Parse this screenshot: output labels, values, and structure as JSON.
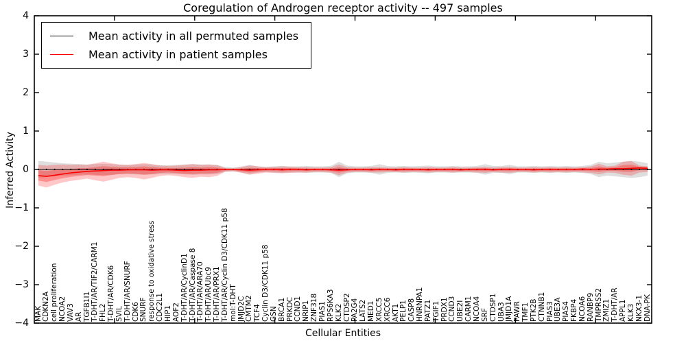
{
  "title": "Coregulation of Androgen receptor activity -- 497 samples",
  "legend": {
    "items": [
      {
        "label": "Mean activity in all permuted samples",
        "color": "#000000"
      },
      {
        "label": "Mean activity in patient samples",
        "color": "#ff0000"
      }
    ],
    "position": "upper left",
    "border_color": "#000000"
  },
  "chart_data": {
    "type": "line",
    "title": "Coregulation of Androgen receptor activity -- 497 samples",
    "xlabel": "Cellular Entities",
    "ylabel": "Inferred Activity",
    "ylim": [
      -4,
      4
    ],
    "yticks": [
      4,
      3,
      2,
      1,
      0,
      -1,
      -2,
      -3,
      -4
    ],
    "ytick_labels": [
      "4",
      "3",
      "2",
      "1",
      "0",
      "−1",
      "−2",
      "−3",
      "−4"
    ],
    "xticks_top": [
      10,
      20,
      30,
      40,
      50,
      60,
      70
    ],
    "grid": false,
    "legend_position": "upper left",
    "categories": [
      "MAK",
      "CDKN2A",
      "cell proliferation",
      "NCOA2",
      "VAV3",
      "AR",
      "TGFB1I1",
      "T-DHT/AR/TIF2/CARM1",
      "FHL2",
      "T-DHT/AR/CDK6",
      "SVIL",
      "T-DHT/AR/SNURF",
      "CDK6",
      "SNURF",
      "response to oxidative stress",
      "CDC2L1",
      "HIP1",
      "AOF2",
      "T-DHT/AR/CyclinD1",
      "T-DHT/AR/Caspase 8",
      "T-DHT/AR/ARA70",
      "T-DHT/AR/Ubc9",
      "T-DHT/AR/PRX1",
      "T-DHT/AR/Cyclin D3/CDK11 p58",
      "mol:T-DHT",
      "JMJD2C",
      "CMTM2",
      "TCF4",
      "Cyclin D3/CDK11 p58",
      "GSN",
      "BRCA1",
      "PRKDC",
      "CCND1",
      "NRIP1",
      "ZNF318",
      "PIAS1",
      "RPS6KA3",
      "KLK2",
      "CTDSP2",
      "PA2G4",
      "LATS2",
      "MED1",
      "XRCC5",
      "XRCC6",
      "AKT1",
      "PELP1",
      "CASP8",
      "HNRNPA1",
      "PATZ1",
      "TGIF1",
      "PRDX1",
      "CCND3",
      "UBE2I",
      "CARM1",
      "NCOA4",
      "SRF",
      "CTDSP1",
      "UBA3",
      "JMJD1A",
      "PAWR",
      "TMF1",
      "PTK2B",
      "CTNNB1",
      "PIAS3",
      "UBE3A",
      "PIAS4",
      "FKBP4",
      "NCOA6",
      "RANBP9",
      "TMPRSS2",
      "ZMIZ1",
      "T-DHT/AR",
      "APPL1",
      "KLK3",
      "NKX3-1",
      "DNA-PK"
    ],
    "series": [
      {
        "name": "Mean activity in all permuted samples",
        "color": "#000000",
        "marker": "dot",
        "values": [
          0,
          0,
          0,
          0,
          0,
          0,
          0,
          0,
          0,
          0,
          0,
          0,
          0,
          0,
          0,
          0,
          0,
          0,
          0,
          0,
          0,
          0,
          0,
          0,
          0,
          0,
          0,
          0,
          0,
          0,
          0,
          0,
          0,
          0,
          0,
          0,
          0,
          0,
          0,
          0,
          0,
          0,
          0,
          0,
          0,
          0,
          0,
          0,
          0,
          0,
          0,
          0,
          0,
          0,
          0,
          0,
          0,
          0,
          0,
          0,
          0,
          0,
          0,
          0,
          0,
          0,
          0,
          0,
          0,
          0,
          0,
          0,
          0,
          0,
          0,
          0
        ]
      },
      {
        "name": "Mean activity in patient samples",
        "color": "#ff0000",
        "marker": "none",
        "values": [
          -0.16,
          -0.18,
          -0.15,
          -0.12,
          -0.09,
          -0.07,
          -0.05,
          -0.04,
          -0.03,
          -0.02,
          -0.02,
          -0.01,
          -0.01,
          -0.01,
          -0.02,
          -0.01,
          -0.01,
          -0.02,
          -0.03,
          -0.02,
          -0.02,
          -0.01,
          -0.01,
          0,
          0,
          -0.01,
          -0.02,
          -0.01,
          0,
          0,
          -0.01,
          0,
          0,
          -0.01,
          0,
          0,
          -0.01,
          -0.02,
          -0.01,
          0,
          0,
          -0.01,
          0,
          0,
          -0.01,
          0,
          0,
          0,
          -0.01,
          0,
          0,
          0,
          -0.01,
          0,
          0,
          0,
          -0.01,
          0,
          0,
          0,
          0,
          -0.01,
          0,
          0,
          0,
          0,
          0,
          0.01,
          0,
          0.01,
          0.01,
          0.02,
          0.02,
          0.03,
          0.04,
          0.03
        ]
      }
    ],
    "bands": [
      {
        "name": "permuted-samples-std-band",
        "color": "rgba(0,0,0,0.13)",
        "hi": [
          0.22,
          0.2,
          0.18,
          0.16,
          0.15,
          0.14,
          0.13,
          0.14,
          0.15,
          0.14,
          0.12,
          0.12,
          0.13,
          0.14,
          0.13,
          0.11,
          0.11,
          0.12,
          0.13,
          0.14,
          0.13,
          0.13,
          0.12,
          0.06,
          0.05,
          0.08,
          0.12,
          0.08,
          0.07,
          0.08,
          0.09,
          0.08,
          0.08,
          0.09,
          0.08,
          0.08,
          0.09,
          0.2,
          0.1,
          0.08,
          0.08,
          0.09,
          0.14,
          0.09,
          0.08,
          0.09,
          0.08,
          0.09,
          0.1,
          0.08,
          0.08,
          0.09,
          0.08,
          0.08,
          0.09,
          0.14,
          0.09,
          0.09,
          0.12,
          0.08,
          0.08,
          0.09,
          0.08,
          0.09,
          0.08,
          0.09,
          0.08,
          0.09,
          0.12,
          0.2,
          0.16,
          0.18,
          0.2,
          0.22,
          0.2,
          0.16
        ],
        "lo": [
          -0.22,
          -0.2,
          -0.18,
          -0.16,
          -0.15,
          -0.14,
          -0.13,
          -0.14,
          -0.15,
          -0.14,
          -0.12,
          -0.12,
          -0.13,
          -0.14,
          -0.13,
          -0.11,
          -0.11,
          -0.12,
          -0.13,
          -0.14,
          -0.13,
          -0.13,
          -0.12,
          -0.06,
          -0.05,
          -0.08,
          -0.12,
          -0.08,
          -0.07,
          -0.08,
          -0.09,
          -0.08,
          -0.08,
          -0.09,
          -0.08,
          -0.08,
          -0.09,
          -0.2,
          -0.1,
          -0.08,
          -0.08,
          -0.09,
          -0.14,
          -0.09,
          -0.08,
          -0.09,
          -0.08,
          -0.09,
          -0.1,
          -0.08,
          -0.08,
          -0.09,
          -0.08,
          -0.08,
          -0.09,
          -0.14,
          -0.09,
          -0.09,
          -0.12,
          -0.08,
          -0.08,
          -0.09,
          -0.08,
          -0.09,
          -0.08,
          -0.09,
          -0.08,
          -0.09,
          -0.12,
          -0.2,
          -0.16,
          -0.18,
          -0.2,
          -0.22,
          -0.2,
          -0.16
        ]
      },
      {
        "name": "patient-samples-std-band",
        "color": "rgba(255,0,0,0.22)",
        "inner_band": true,
        "hi": [
          0.12,
          0.1,
          0.12,
          0.13,
          0.12,
          0.13,
          0.12,
          0.16,
          0.2,
          0.16,
          0.13,
          0.12,
          0.14,
          0.17,
          0.14,
          0.1,
          0.09,
          0.1,
          0.12,
          0.14,
          0.12,
          0.13,
          0.11,
          0.04,
          0.03,
          0.06,
          0.1,
          0.08,
          0.06,
          0.07,
          0.08,
          0.07,
          0.06,
          0.06,
          0.05,
          0.05,
          0.06,
          0.13,
          0.06,
          0.05,
          0.05,
          0.06,
          0.06,
          0.05,
          0.05,
          0.06,
          0.05,
          0.05,
          0.06,
          0.05,
          0.05,
          0.06,
          0.05,
          0.05,
          0.06,
          0.07,
          0.05,
          0.06,
          0.07,
          0.05,
          0.05,
          0.06,
          0.05,
          0.06,
          0.05,
          0.06,
          0.05,
          0.06,
          0.08,
          0.15,
          0.08,
          0.1,
          0.2,
          0.22,
          0.1,
          0.08
        ],
        "lo": [
          -0.42,
          -0.47,
          -0.4,
          -0.34,
          -0.3,
          -0.27,
          -0.24,
          -0.28,
          -0.32,
          -0.27,
          -0.22,
          -0.2,
          -0.22,
          -0.26,
          -0.22,
          -0.17,
          -0.15,
          -0.17,
          -0.2,
          -0.22,
          -0.19,
          -0.2,
          -0.17,
          -0.06,
          -0.05,
          -0.09,
          -0.14,
          -0.11,
          -0.08,
          -0.09,
          -0.1,
          -0.09,
          -0.08,
          -0.08,
          -0.07,
          -0.07,
          -0.08,
          -0.15,
          -0.08,
          -0.07,
          -0.07,
          -0.08,
          -0.08,
          -0.07,
          -0.07,
          -0.08,
          -0.07,
          -0.07,
          -0.08,
          -0.07,
          -0.07,
          -0.08,
          -0.07,
          -0.07,
          -0.08,
          -0.09,
          -0.07,
          -0.08,
          -0.09,
          -0.07,
          -0.07,
          -0.08,
          -0.07,
          -0.08,
          -0.07,
          -0.08,
          -0.07,
          -0.08,
          -0.09,
          -0.13,
          -0.08,
          -0.09,
          -0.14,
          -0.16,
          -0.08,
          -0.07
        ]
      }
    ]
  }
}
